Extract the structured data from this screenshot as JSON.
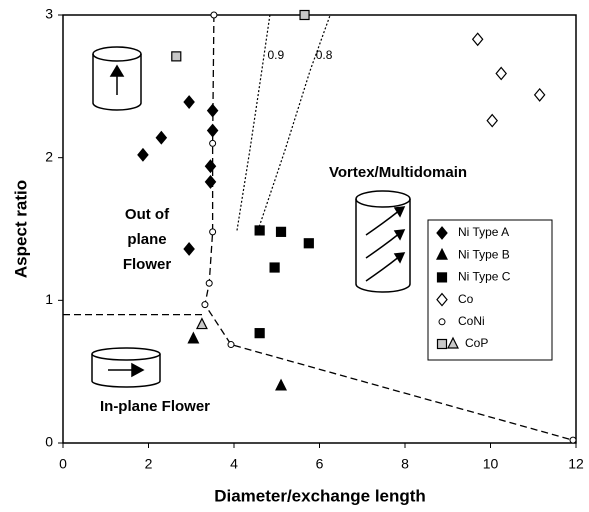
{
  "chart_data": {
    "type": "scatter",
    "x_label": "Diameter/exchange  length",
    "y_label": "Aspect ratio",
    "xlim": [
      0,
      12
    ],
    "xticks": [
      0,
      2,
      4,
      6,
      8,
      10,
      12
    ],
    "ylim": [
      0,
      3
    ],
    "yticks": [
      0,
      1,
      2,
      3
    ],
    "series": [
      {
        "name": "Ni Type A",
        "marker": "diamond",
        "filled": true,
        "color": "#000000",
        "x": [
          1.87,
          2.3,
          2.95,
          3.5,
          3.5,
          3.45,
          3.45,
          2.95
        ],
        "values": [
          2.02,
          2.14,
          2.39,
          2.33,
          2.19,
          1.94,
          1.83,
          1.36
        ]
      },
      {
        "name": "Ni Type B",
        "marker": "triangle",
        "filled": true,
        "color": "#000000",
        "x": [
          3.05,
          5.1
        ],
        "values": [
          0.73,
          0.4
        ]
      },
      {
        "name": "Ni Type C",
        "marker": "square",
        "filled": true,
        "color": "#000000",
        "x": [
          4.6,
          5.1,
          5.75,
          4.95,
          4.6
        ],
        "values": [
          1.49,
          1.48,
          1.4,
          1.23,
          0.77
        ]
      },
      {
        "name": "Co",
        "marker": "diamond",
        "filled": false,
        "color": "#000000",
        "x": [
          9.7,
          10.25,
          11.15,
          10.04
        ],
        "values": [
          2.83,
          2.59,
          2.44,
          2.26
        ]
      },
      {
        "name": "CoNi",
        "marker": "circle",
        "filled": false,
        "color": "#000000",
        "x": [
          3.53,
          3.5,
          3.5,
          3.42,
          3.32,
          3.93,
          11.93
        ],
        "values": [
          3.0,
          2.1,
          1.48,
          1.12,
          0.97,
          0.69,
          0.02
        ]
      },
      {
        "name": "CoP",
        "markers": [
          "square",
          "square",
          "triangle"
        ],
        "filled": false,
        "color": "#c8c8c8",
        "x": [
          2.65,
          5.65,
          3.25
        ],
        "values": [
          2.71,
          3.0,
          0.83
        ]
      }
    ],
    "lines": [
      {
        "style": "dashed",
        "x": [
          3.53,
          3.5,
          3.5,
          3.42,
          3.32,
          3.93,
          11.93
        ],
        "values": [
          3.0,
          2.1,
          1.48,
          1.12,
          0.97,
          0.69,
          0.02
        ]
      },
      {
        "style": "dashed",
        "x": [
          0,
          3.32
        ],
        "values": [
          0.9,
          0.9
        ]
      },
      {
        "style": "dotted",
        "name": "0.9",
        "x": [
          4.07,
          4.37,
          4.65,
          4.84
        ],
        "values": [
          1.49,
          2.05,
          2.61,
          3.0
        ]
      },
      {
        "style": "dotted",
        "name": "0.8",
        "x": [
          4.56,
          5.19,
          5.78,
          6.25
        ],
        "values": [
          1.49,
          2.05,
          2.61,
          3.0
        ]
      }
    ],
    "annotations": [
      "Vortex/Multidomain",
      "Out of",
      "plane",
      "Flower",
      "In-plane Flower"
    ]
  }
}
